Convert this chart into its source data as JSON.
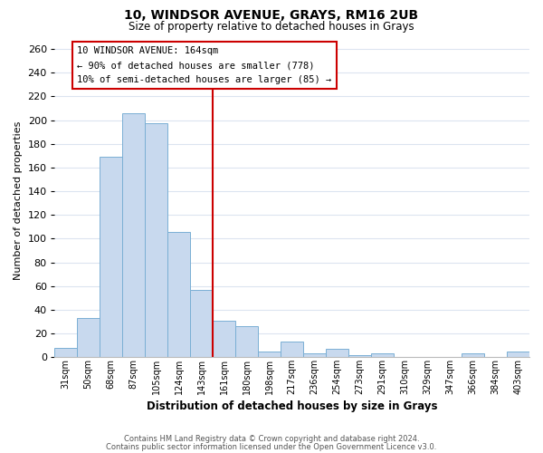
{
  "title": "10, WINDSOR AVENUE, GRAYS, RM16 2UB",
  "subtitle": "Size of property relative to detached houses in Grays",
  "xlabel": "Distribution of detached houses by size in Grays",
  "ylabel": "Number of detached properties",
  "categories": [
    "31sqm",
    "50sqm",
    "68sqm",
    "87sqm",
    "105sqm",
    "124sqm",
    "143sqm",
    "161sqm",
    "180sqm",
    "198sqm",
    "217sqm",
    "236sqm",
    "254sqm",
    "273sqm",
    "291sqm",
    "310sqm",
    "329sqm",
    "347sqm",
    "366sqm",
    "384sqm",
    "403sqm"
  ],
  "values": [
    8,
    33,
    169,
    206,
    197,
    106,
    57,
    31,
    26,
    5,
    13,
    3,
    7,
    2,
    3,
    0,
    0,
    0,
    3,
    0,
    5
  ],
  "bar_color": "#c8d9ee",
  "bar_edge_color": "#7aafd4",
  "vline_x": 6.5,
  "vline_color": "#cc0000",
  "annotation_title": "10 WINDSOR AVENUE: 164sqm",
  "annotation_line1": "← 90% of detached houses are smaller (778)",
  "annotation_line2": "10% of semi-detached houses are larger (85) →",
  "annotation_box_edge": "#cc0000",
  "ylim": [
    0,
    265
  ],
  "yticks": [
    0,
    20,
    40,
    60,
    80,
    100,
    120,
    140,
    160,
    180,
    200,
    220,
    240,
    260
  ],
  "footer1": "Contains HM Land Registry data © Crown copyright and database right 2024.",
  "footer2": "Contains public sector information licensed under the Open Government Licence v3.0.",
  "background_color": "#ffffff",
  "grid_color": "#dce4f0"
}
